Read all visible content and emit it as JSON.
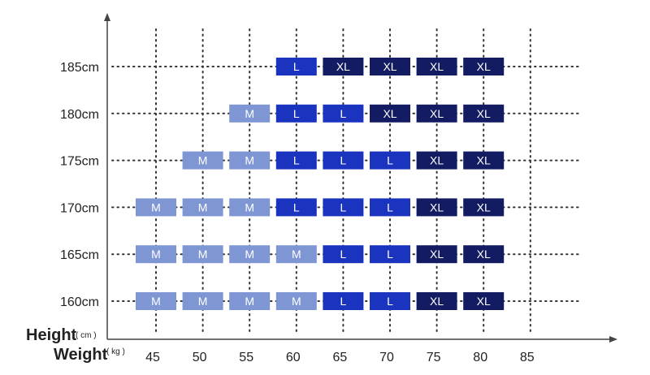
{
  "chart_data": {
    "type": "table",
    "title": "",
    "xlabel": "Weight",
    "xunit": "( kg )",
    "ylabel": "Height",
    "yunit": "( cm )",
    "x": [
      45,
      50,
      55,
      60,
      65,
      70,
      75,
      80,
      85
    ],
    "x_tick_labels": [
      "45",
      "50",
      "55",
      "60",
      "65",
      "70",
      "75",
      "80",
      "85"
    ],
    "y": [
      185,
      180,
      175,
      170,
      165,
      160
    ],
    "y_tick_labels": [
      "185cm",
      "180cm",
      "175cm",
      "170cm",
      "165cm",
      "160cm"
    ],
    "sizes": {
      "M": {
        "label": "M",
        "color": "#7f96d4"
      },
      "L": {
        "label": "L",
        "color": "#1a34c0"
      },
      "XL": {
        "label": "XL",
        "color": "#131c63"
      }
    },
    "cells": [
      {
        "height": 185,
        "weight": 60,
        "size": "L"
      },
      {
        "height": 185,
        "weight": 65,
        "size": "XL"
      },
      {
        "height": 185,
        "weight": 70,
        "size": "XL"
      },
      {
        "height": 185,
        "weight": 75,
        "size": "XL"
      },
      {
        "height": 185,
        "weight": 80,
        "size": "XL"
      },
      {
        "height": 180,
        "weight": 55,
        "size": "M"
      },
      {
        "height": 180,
        "weight": 60,
        "size": "L"
      },
      {
        "height": 180,
        "weight": 65,
        "size": "L"
      },
      {
        "height": 180,
        "weight": 70,
        "size": "XL"
      },
      {
        "height": 180,
        "weight": 75,
        "size": "XL"
      },
      {
        "height": 180,
        "weight": 80,
        "size": "XL"
      },
      {
        "height": 175,
        "weight": 50,
        "size": "M"
      },
      {
        "height": 175,
        "weight": 55,
        "size": "M"
      },
      {
        "height": 175,
        "weight": 60,
        "size": "L"
      },
      {
        "height": 175,
        "weight": 65,
        "size": "L"
      },
      {
        "height": 175,
        "weight": 70,
        "size": "L"
      },
      {
        "height": 175,
        "weight": 75,
        "size": "XL"
      },
      {
        "height": 175,
        "weight": 80,
        "size": "XL"
      },
      {
        "height": 170,
        "weight": 45,
        "size": "M"
      },
      {
        "height": 170,
        "weight": 50,
        "size": "M"
      },
      {
        "height": 170,
        "weight": 55,
        "size": "M"
      },
      {
        "height": 170,
        "weight": 60,
        "size": "L"
      },
      {
        "height": 170,
        "weight": 65,
        "size": "L"
      },
      {
        "height": 170,
        "weight": 70,
        "size": "L"
      },
      {
        "height": 170,
        "weight": 75,
        "size": "XL"
      },
      {
        "height": 170,
        "weight": 80,
        "size": "XL"
      },
      {
        "height": 165,
        "weight": 45,
        "size": "M"
      },
      {
        "height": 165,
        "weight": 50,
        "size": "M"
      },
      {
        "height": 165,
        "weight": 55,
        "size": "M"
      },
      {
        "height": 165,
        "weight": 60,
        "size": "M"
      },
      {
        "height": 165,
        "weight": 65,
        "size": "L"
      },
      {
        "height": 165,
        "weight": 70,
        "size": "L"
      },
      {
        "height": 165,
        "weight": 75,
        "size": "XL"
      },
      {
        "height": 165,
        "weight": 80,
        "size": "XL"
      },
      {
        "height": 160,
        "weight": 45,
        "size": "M"
      },
      {
        "height": 160,
        "weight": 50,
        "size": "M"
      },
      {
        "height": 160,
        "weight": 55,
        "size": "M"
      },
      {
        "height": 160,
        "weight": 60,
        "size": "M"
      },
      {
        "height": 160,
        "weight": 65,
        "size": "L"
      },
      {
        "height": 160,
        "weight": 70,
        "size": "L"
      },
      {
        "height": 160,
        "weight": 75,
        "size": "XL"
      },
      {
        "height": 160,
        "weight": 80,
        "size": "XL"
      }
    ],
    "grid": true,
    "legend": "none"
  }
}
